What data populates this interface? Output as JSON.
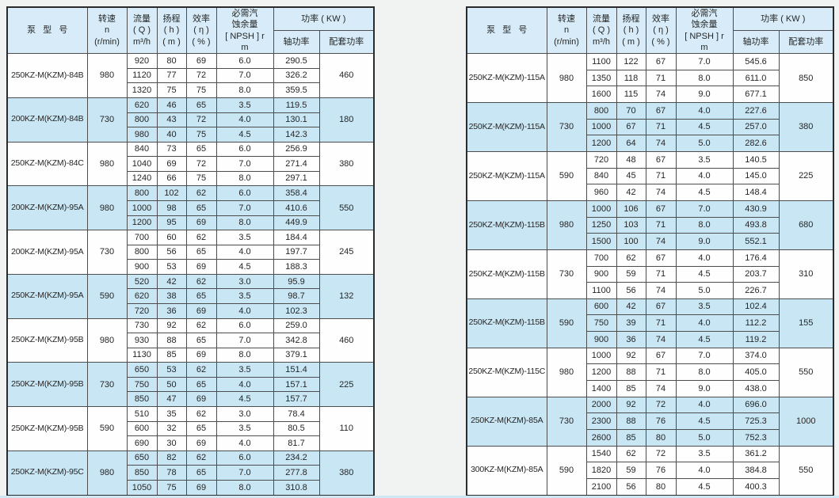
{
  "header": {
    "model": "泵   型   号",
    "speed": "转速\nn\n(r/min)",
    "flow": "流量\n( Q )\nm³/h",
    "head": "扬程\n( h )\n( m )",
    "efficiency": "效率\n( η )\n( % )",
    "npsh": "必需汽\n蚀余量\n[ NPSH ] r\nm",
    "power": "功率 ( KW )",
    "shaft_power": "轴功率",
    "matching_power": "配套功率"
  },
  "colors": {
    "page_bg": "#f1f3f2",
    "header_bg": "#d7ecf8",
    "highlight_bg": "#c9e6f4",
    "row_bg": "#fefefe",
    "border": "#4d4d4d",
    "outer_border": "#2b2b2b",
    "text": "#262626"
  },
  "tables": {
    "left": {
      "groups": [
        {
          "model": "250KZ-M(KZM)-84B",
          "speed": "980",
          "power": "460",
          "highlight": false,
          "rows": [
            [
              "920",
              "80",
              "69",
              "6.0",
              "290.5"
            ],
            [
              "1120",
              "77",
              "72",
              "7.0",
              "326.2"
            ],
            [
              "1320",
              "75",
              "75",
              "8.0",
              "359.5"
            ]
          ]
        },
        {
          "model": "200KZ-M(KZM)-84B",
          "speed": "730",
          "power": "180",
          "highlight": true,
          "rows": [
            [
              "620",
              "46",
              "65",
              "3.5",
              "119.5"
            ],
            [
              "800",
              "43",
              "72",
              "4.0",
              "130.1"
            ],
            [
              "980",
              "40",
              "75",
              "4.5",
              "142.3"
            ]
          ]
        },
        {
          "model": "250KZ-M(KZM)-84C",
          "speed": "980",
          "power": "380",
          "highlight": false,
          "rows": [
            [
              "840",
              "73",
              "65",
              "6.0",
              "256.9"
            ],
            [
              "1040",
              "69",
              "72",
              "7.0",
              "271.4"
            ],
            [
              "1240",
              "66",
              "75",
              "8.0",
              "297.1"
            ]
          ]
        },
        {
          "model": "200KZ-M(KZM)-95A",
          "speed": "980",
          "power": "550",
          "highlight": true,
          "rows": [
            [
              "800",
              "102",
              "62",
              "6.0",
              "358.4"
            ],
            [
              "1000",
              "98",
              "65",
              "7.0",
              "410.6"
            ],
            [
              "1200",
              "95",
              "69",
              "8.0",
              "449.9"
            ]
          ]
        },
        {
          "model": "200KZ-M(KZM)-95A",
          "speed": "730",
          "power": "245",
          "highlight": false,
          "rows": [
            [
              "700",
              "60",
              "62",
              "3.5",
              "184.4"
            ],
            [
              "800",
              "56",
              "65",
              "4.0",
              "197.7"
            ],
            [
              "900",
              "53",
              "69",
              "4.5",
              "188.3"
            ]
          ]
        },
        {
          "model": "250KZ-M(KZM)-95A",
          "speed": "590",
          "power": "132",
          "highlight": true,
          "rows": [
            [
              "520",
              "42",
              "62",
              "3.0",
              "95.9"
            ],
            [
              "620",
              "38",
              "65",
              "3.5",
              "98.7"
            ],
            [
              "720",
              "36",
              "69",
              "4.0",
              "102.3"
            ]
          ]
        },
        {
          "model": "250KZ-M(KZM)-95B",
          "speed": "980",
          "power": "460",
          "highlight": false,
          "rows": [
            [
              "730",
              "92",
              "62",
              "6.0",
              "259.0"
            ],
            [
              "930",
              "88",
              "65",
              "7.0",
              "342.8"
            ],
            [
              "1130",
              "85",
              "69",
              "8.0",
              "379.1"
            ]
          ]
        },
        {
          "model": "250KZ-M(KZM)-95B",
          "speed": "730",
          "power": "225",
          "highlight": true,
          "rows": [
            [
              "650",
              "53",
              "62",
              "3.5",
              "151.4"
            ],
            [
              "750",
              "50",
              "65",
              "4.0",
              "157.1"
            ],
            [
              "850",
              "47",
              "69",
              "4.5",
              "157.7"
            ]
          ]
        },
        {
          "model": "250KZ-M(KZM)-95B",
          "speed": "590",
          "power": "110",
          "highlight": false,
          "rows": [
            [
              "510",
              "35",
              "62",
              "3.0",
              "78.4"
            ],
            [
              "600",
              "32",
              "65",
              "3.5",
              "80.5"
            ],
            [
              "690",
              "30",
              "69",
              "4.0",
              "81.7"
            ]
          ]
        },
        {
          "model": "250KZ-M(KZM)-95C",
          "speed": "980",
          "power": "380",
          "highlight": true,
          "rows": [
            [
              "650",
              "82",
              "62",
              "6.0",
              "234.2"
            ],
            [
              "850",
              "78",
              "65",
              "7.0",
              "277.8"
            ],
            [
              "1050",
              "75",
              "69",
              "8.0",
              "310.8"
            ]
          ]
        }
      ]
    },
    "right": {
      "groups": [
        {
          "model": "250KZ-M(KZM)-115A",
          "speed": "980",
          "power": "850",
          "highlight": false,
          "rows": [
            [
              "1100",
              "122",
              "67",
              "7.0",
              "545.6"
            ],
            [
              "1350",
              "118",
              "71",
              "8.0",
              "611.0"
            ],
            [
              "1600",
              "115",
              "74",
              "9.0",
              "677.1"
            ]
          ]
        },
        {
          "model": "250KZ-M(KZM)-115A",
          "speed": "730",
          "power": "380",
          "highlight": true,
          "rows": [
            [
              "800",
              "70",
              "67",
              "4.0",
              "227.6"
            ],
            [
              "1000",
              "67",
              "71",
              "4.5",
              "257.0"
            ],
            [
              "1200",
              "64",
              "74",
              "5.0",
              "282.6"
            ]
          ]
        },
        {
          "model": "250KZ-M(KZM)-115A",
          "speed": "590",
          "power": "225",
          "highlight": false,
          "rows": [
            [
              "720",
              "48",
              "67",
              "3.5",
              "140.5"
            ],
            [
              "840",
              "45",
              "71",
              "4.0",
              "145.0"
            ],
            [
              "960",
              "42",
              "74",
              "4.5",
              "148.4"
            ]
          ]
        },
        {
          "model": "250KZ-M(KZM)-115B",
          "speed": "980",
          "power": "680",
          "highlight": true,
          "rows": [
            [
              "1000",
              "106",
              "67",
              "7.0",
              "430.9"
            ],
            [
              "1250",
              "103",
              "71",
              "8.0",
              "493.8"
            ],
            [
              "1500",
              "100",
              "74",
              "9.0",
              "552.1"
            ]
          ]
        },
        {
          "model": "250KZ-M(KZM)-115B",
          "speed": "730",
          "power": "310",
          "highlight": false,
          "rows": [
            [
              "700",
              "62",
              "67",
              "4.0",
              "176.4"
            ],
            [
              "900",
              "59",
              "71",
              "4.5",
              "203.7"
            ],
            [
              "1100",
              "56",
              "74",
              "5.0",
              "226.7"
            ]
          ]
        },
        {
          "model": "250KZ-M(KZM)-115B",
          "speed": "590",
          "power": "155",
          "highlight": true,
          "rows": [
            [
              "600",
              "42",
              "67",
              "3.5",
              "102.4"
            ],
            [
              "750",
              "39",
              "71",
              "4.0",
              "112.2"
            ],
            [
              "900",
              "36",
              "74",
              "4.5",
              "119.2"
            ]
          ]
        },
        {
          "model": "250KZ-M(KZM)-115C",
          "speed": "980",
          "power": "550",
          "highlight": false,
          "rows": [
            [
              "1000",
              "92",
              "67",
              "7.0",
              "374.0"
            ],
            [
              "1200",
              "88",
              "71",
              "8.0",
              "405.0"
            ],
            [
              "1400",
              "85",
              "74",
              "9.0",
              "438.0"
            ]
          ]
        },
        {
          "model": "250KZ-M(KZM)-85A",
          "speed": "730",
          "power": "1000",
          "highlight": true,
          "rows": [
            [
              "2000",
              "92",
              "72",
              "4.0",
              "696.0"
            ],
            [
              "2300",
              "88",
              "76",
              "4.5",
              "725.3"
            ],
            [
              "2600",
              "85",
              "80",
              "5.0",
              "752.3"
            ]
          ]
        },
        {
          "model": "300KZ-M(KZM)-85A",
          "speed": "590",
          "power": "550",
          "highlight": false,
          "rows": [
            [
              "1540",
              "62",
              "72",
              "3.5",
              "361.2"
            ],
            [
              "1820",
              "59",
              "76",
              "4.0",
              "384.8"
            ],
            [
              "2100",
              "56",
              "80",
              "4.5",
              "400.3"
            ]
          ]
        }
      ]
    }
  }
}
